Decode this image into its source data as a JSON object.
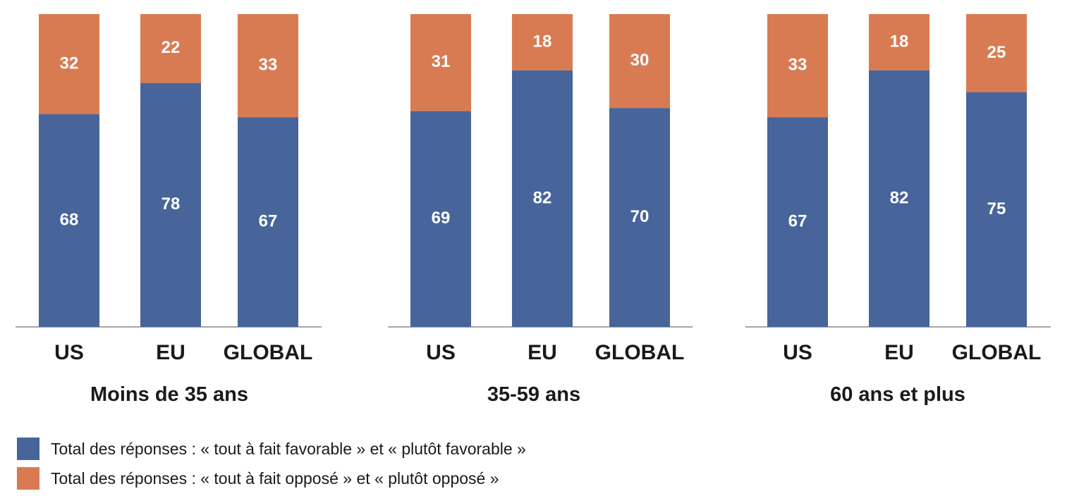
{
  "chart_data": {
    "type": "bar",
    "stacked": true,
    "ylim": [
      0,
      100
    ],
    "colors": {
      "favorable": "#47659b",
      "oppose": "#d97b52"
    },
    "panels": [
      {
        "title": "Moins de 35 ans",
        "categories": [
          "US",
          "EU",
          "GLOBAL"
        ],
        "series": [
          {
            "name": "Total des réponses : « tout à fait favorable » et « plutôt favorable »",
            "key": "favorable",
            "values": [
              68,
              78,
              67
            ]
          },
          {
            "name": "Total des réponses : « tout à fait opposé » et « plutôt opposé »",
            "key": "oppose",
            "values": [
              32,
              22,
              33
            ]
          }
        ]
      },
      {
        "title": "35-59 ans",
        "categories": [
          "US",
          "EU",
          "GLOBAL"
        ],
        "series": [
          {
            "name": "Total des réponses : « tout à fait favorable » et « plutôt favorable »",
            "key": "favorable",
            "values": [
              69,
              82,
              70
            ]
          },
          {
            "name": "Total des réponses : « tout à fait opposé » et « plutôt opposé »",
            "key": "oppose",
            "values": [
              31,
              18,
              30
            ]
          }
        ]
      },
      {
        "title": "60 ans et plus",
        "categories": [
          "US",
          "EU",
          "GLOBAL"
        ],
        "series": [
          {
            "name": "Total des réponses : « tout à fait favorable » et « plutôt favorable »",
            "key": "favorable",
            "values": [
              67,
              82,
              75
            ]
          },
          {
            "name": "Total des réponses : « tout à fait opposé » et « plutôt opposé »",
            "key": "oppose",
            "values": [
              33,
              18,
              25
            ]
          }
        ]
      }
    ]
  },
  "legend": {
    "favorable_label": "Total des réponses : « tout à fait favorable » et « plutôt favorable »",
    "oppose_label": "Total des réponses : « tout à fait opposé » et « plutôt opposé »"
  }
}
